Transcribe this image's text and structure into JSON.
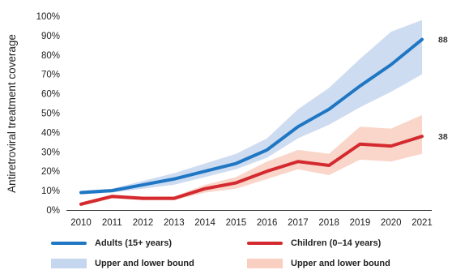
{
  "chart_data": {
    "type": "line",
    "ylabel": "Antiretroviral treatment coverage",
    "xlabel": "",
    "x": [
      "2010",
      "2011",
      "2012",
      "2013",
      "2014",
      "2015",
      "2016",
      "2017",
      "2018",
      "2019",
      "2020",
      "2021"
    ],
    "ylim": [
      0,
      100
    ],
    "yticks": [
      "0%",
      "10%",
      "20%",
      "30%",
      "40%",
      "50%",
      "60%",
      "70%",
      "80%",
      "90%",
      "100%"
    ],
    "series": [
      {
        "name": "Adults (15+ years)",
        "color": "#1f77c4",
        "values": [
          9,
          10,
          13,
          16,
          20,
          24,
          31,
          43,
          52,
          64,
          75,
          88
        ],
        "lower": [
          8,
          9,
          11,
          13,
          17,
          21,
          27,
          37,
          44,
          53,
          61,
          70
        ],
        "upper": [
          10,
          11,
          15,
          19,
          24,
          29,
          37,
          52,
          63,
          78,
          92,
          98
        ],
        "band_color": "#c5d6ef",
        "end_label": "88"
      },
      {
        "name": "Children (0–14 years)",
        "color": "#d42a2f",
        "values": [
          3,
          7,
          6,
          6,
          11,
          14,
          20,
          25,
          23,
          34,
          33,
          38
        ],
        "lower": [
          2,
          6,
          5,
          5,
          9,
          11,
          16,
          21,
          18,
          26,
          25,
          29
        ],
        "upper": [
          4,
          8,
          7,
          7,
          13,
          17,
          25,
          31,
          29,
          43,
          42,
          49
        ],
        "band_color": "#f8cfc0",
        "end_label": "38"
      }
    ],
    "legend": {
      "placement": "bottom",
      "entries": [
        {
          "label": "Adults (15+ years)",
          "kind": "line",
          "color": "#1f77c4"
        },
        {
          "label": "Children (0–14 years)",
          "kind": "line",
          "color": "#d42a2f"
        },
        {
          "label": "Upper and lower bound",
          "kind": "band",
          "color": "#c5d6ef"
        },
        {
          "label": "Upper and lower bound",
          "kind": "band",
          "color": "#f8cfc0"
        }
      ]
    }
  }
}
